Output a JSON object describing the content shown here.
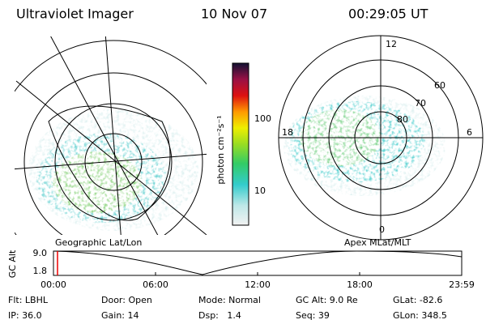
{
  "header": {
    "title": "Ultraviolet Imager",
    "date": "10 Nov 07",
    "time": "00:29:05 UT"
  },
  "colorbar": {
    "label": "photon cm⁻²s⁻¹",
    "ticks": [
      "100",
      "10"
    ]
  },
  "left_map": {
    "caption": "Geographic Lat/Lon"
  },
  "right_map": {
    "caption": "Apex MLat/MLT",
    "labels": [
      "12",
      "60",
      "70",
      "80",
      "18",
      "6",
      "0"
    ]
  },
  "altitude_plot": {
    "label": "GC Alt",
    "yticks": [
      "9.0",
      "1.8"
    ],
    "xticks": [
      "00:00",
      "06:00",
      "12:00",
      "18:00",
      "23:59"
    ]
  },
  "info": {
    "rows": [
      [
        "Flt: LBHL",
        "Door: Open",
        "Mode: Normal",
        "GC Alt: 9.0 Re",
        "GLat: -82.6"
      ],
      [
        "IP: 36.0",
        "Gain: 14",
        "Dsp:   1.4",
        "Seq: 39",
        "GLon: 348.5"
      ]
    ]
  }
}
